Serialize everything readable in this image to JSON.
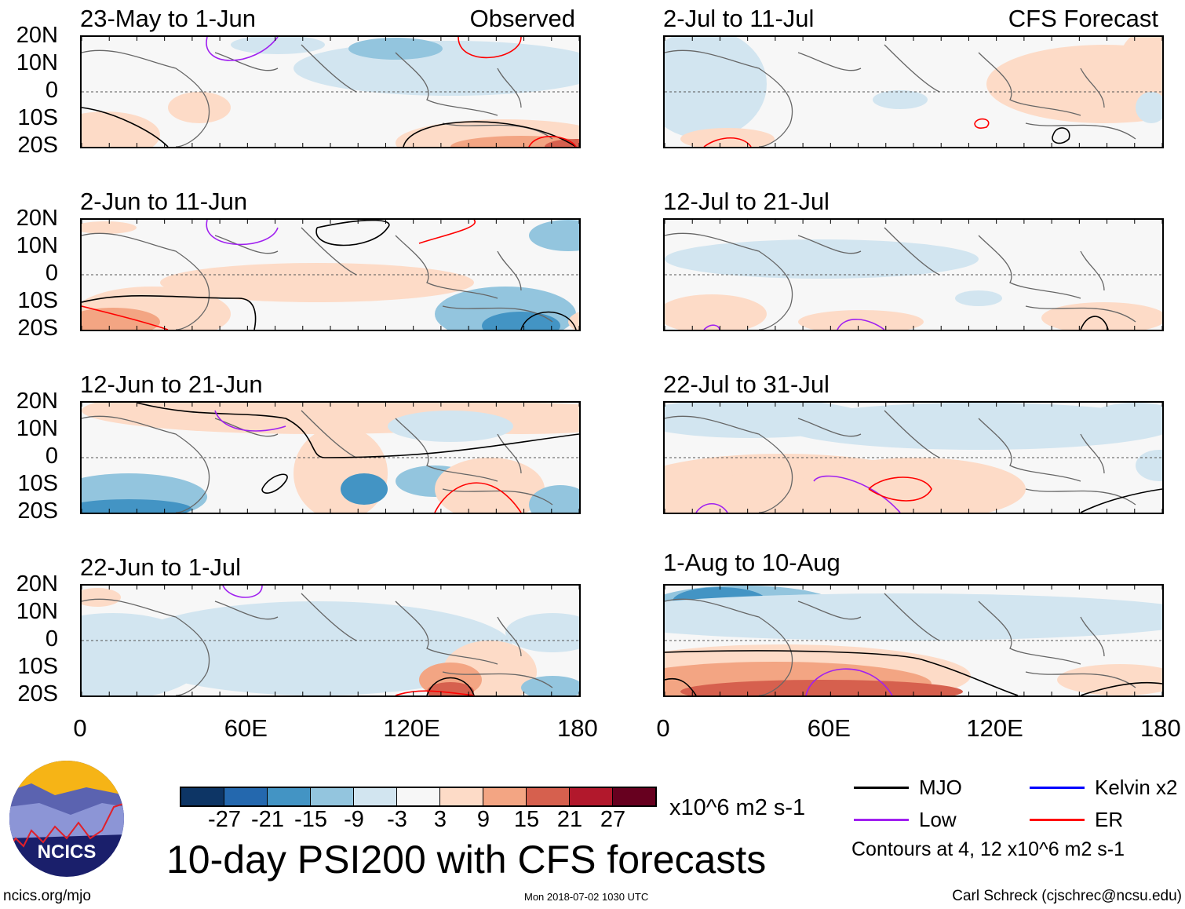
{
  "chart_data": {
    "type": "heatmap",
    "title": "10-day PSI200 with CFS forecasts",
    "columns": [
      {
        "header": "Observed",
        "panels": [
          "23-May to 1-Jun",
          "2-Jun to 11-Jun",
          "12-Jun to 21-Jun",
          "22-Jun to 1-Jul"
        ]
      },
      {
        "header": "CFS Forecast",
        "panels": [
          "2-Jul to 11-Jul",
          "12-Jul to 21-Jul",
          "22-Jul to 31-Jul",
          "1-Aug to 10-Aug"
        ]
      }
    ],
    "y_ticks": [
      "20N",
      "10N",
      "0",
      "10S",
      "20S"
    ],
    "x_ticks": [
      "0",
      "60E",
      "120E",
      "180"
    ],
    "xlim": [
      0,
      180
    ],
    "ylim": [
      -20,
      20
    ],
    "colorbar": {
      "levels": [
        "-27",
        "-21",
        "-15",
        "-9",
        "-3",
        "3",
        "9",
        "15",
        "21",
        "27"
      ],
      "colors": [
        "#0d3565",
        "#2468ae",
        "#4394c4",
        "#93c5de",
        "#d2e5f0",
        "#f7f7f7",
        "#fddbc7",
        "#f3a583",
        "#d6604e",
        "#b2182c",
        "#67001f"
      ],
      "units": "x10^6 m2 s-1"
    },
    "legend": [
      {
        "label": "MJO",
        "color": "#000000"
      },
      {
        "label": "Kelvin x2",
        "color": "#0000ff"
      },
      {
        "label": "Low",
        "color": "#a020f0"
      },
      {
        "label": "ER",
        "color": "#ff0000"
      }
    ],
    "contour_note": "Contours at 4, 12 x10^6 m2 s-1"
  },
  "footer": {
    "logo_text": "NCICS",
    "url": "ncics.org/mjo",
    "timestamp": "Mon 2018-07-02 1030 UTC",
    "author": "Carl Schreck (cjschrec@ncsu.edu)"
  }
}
